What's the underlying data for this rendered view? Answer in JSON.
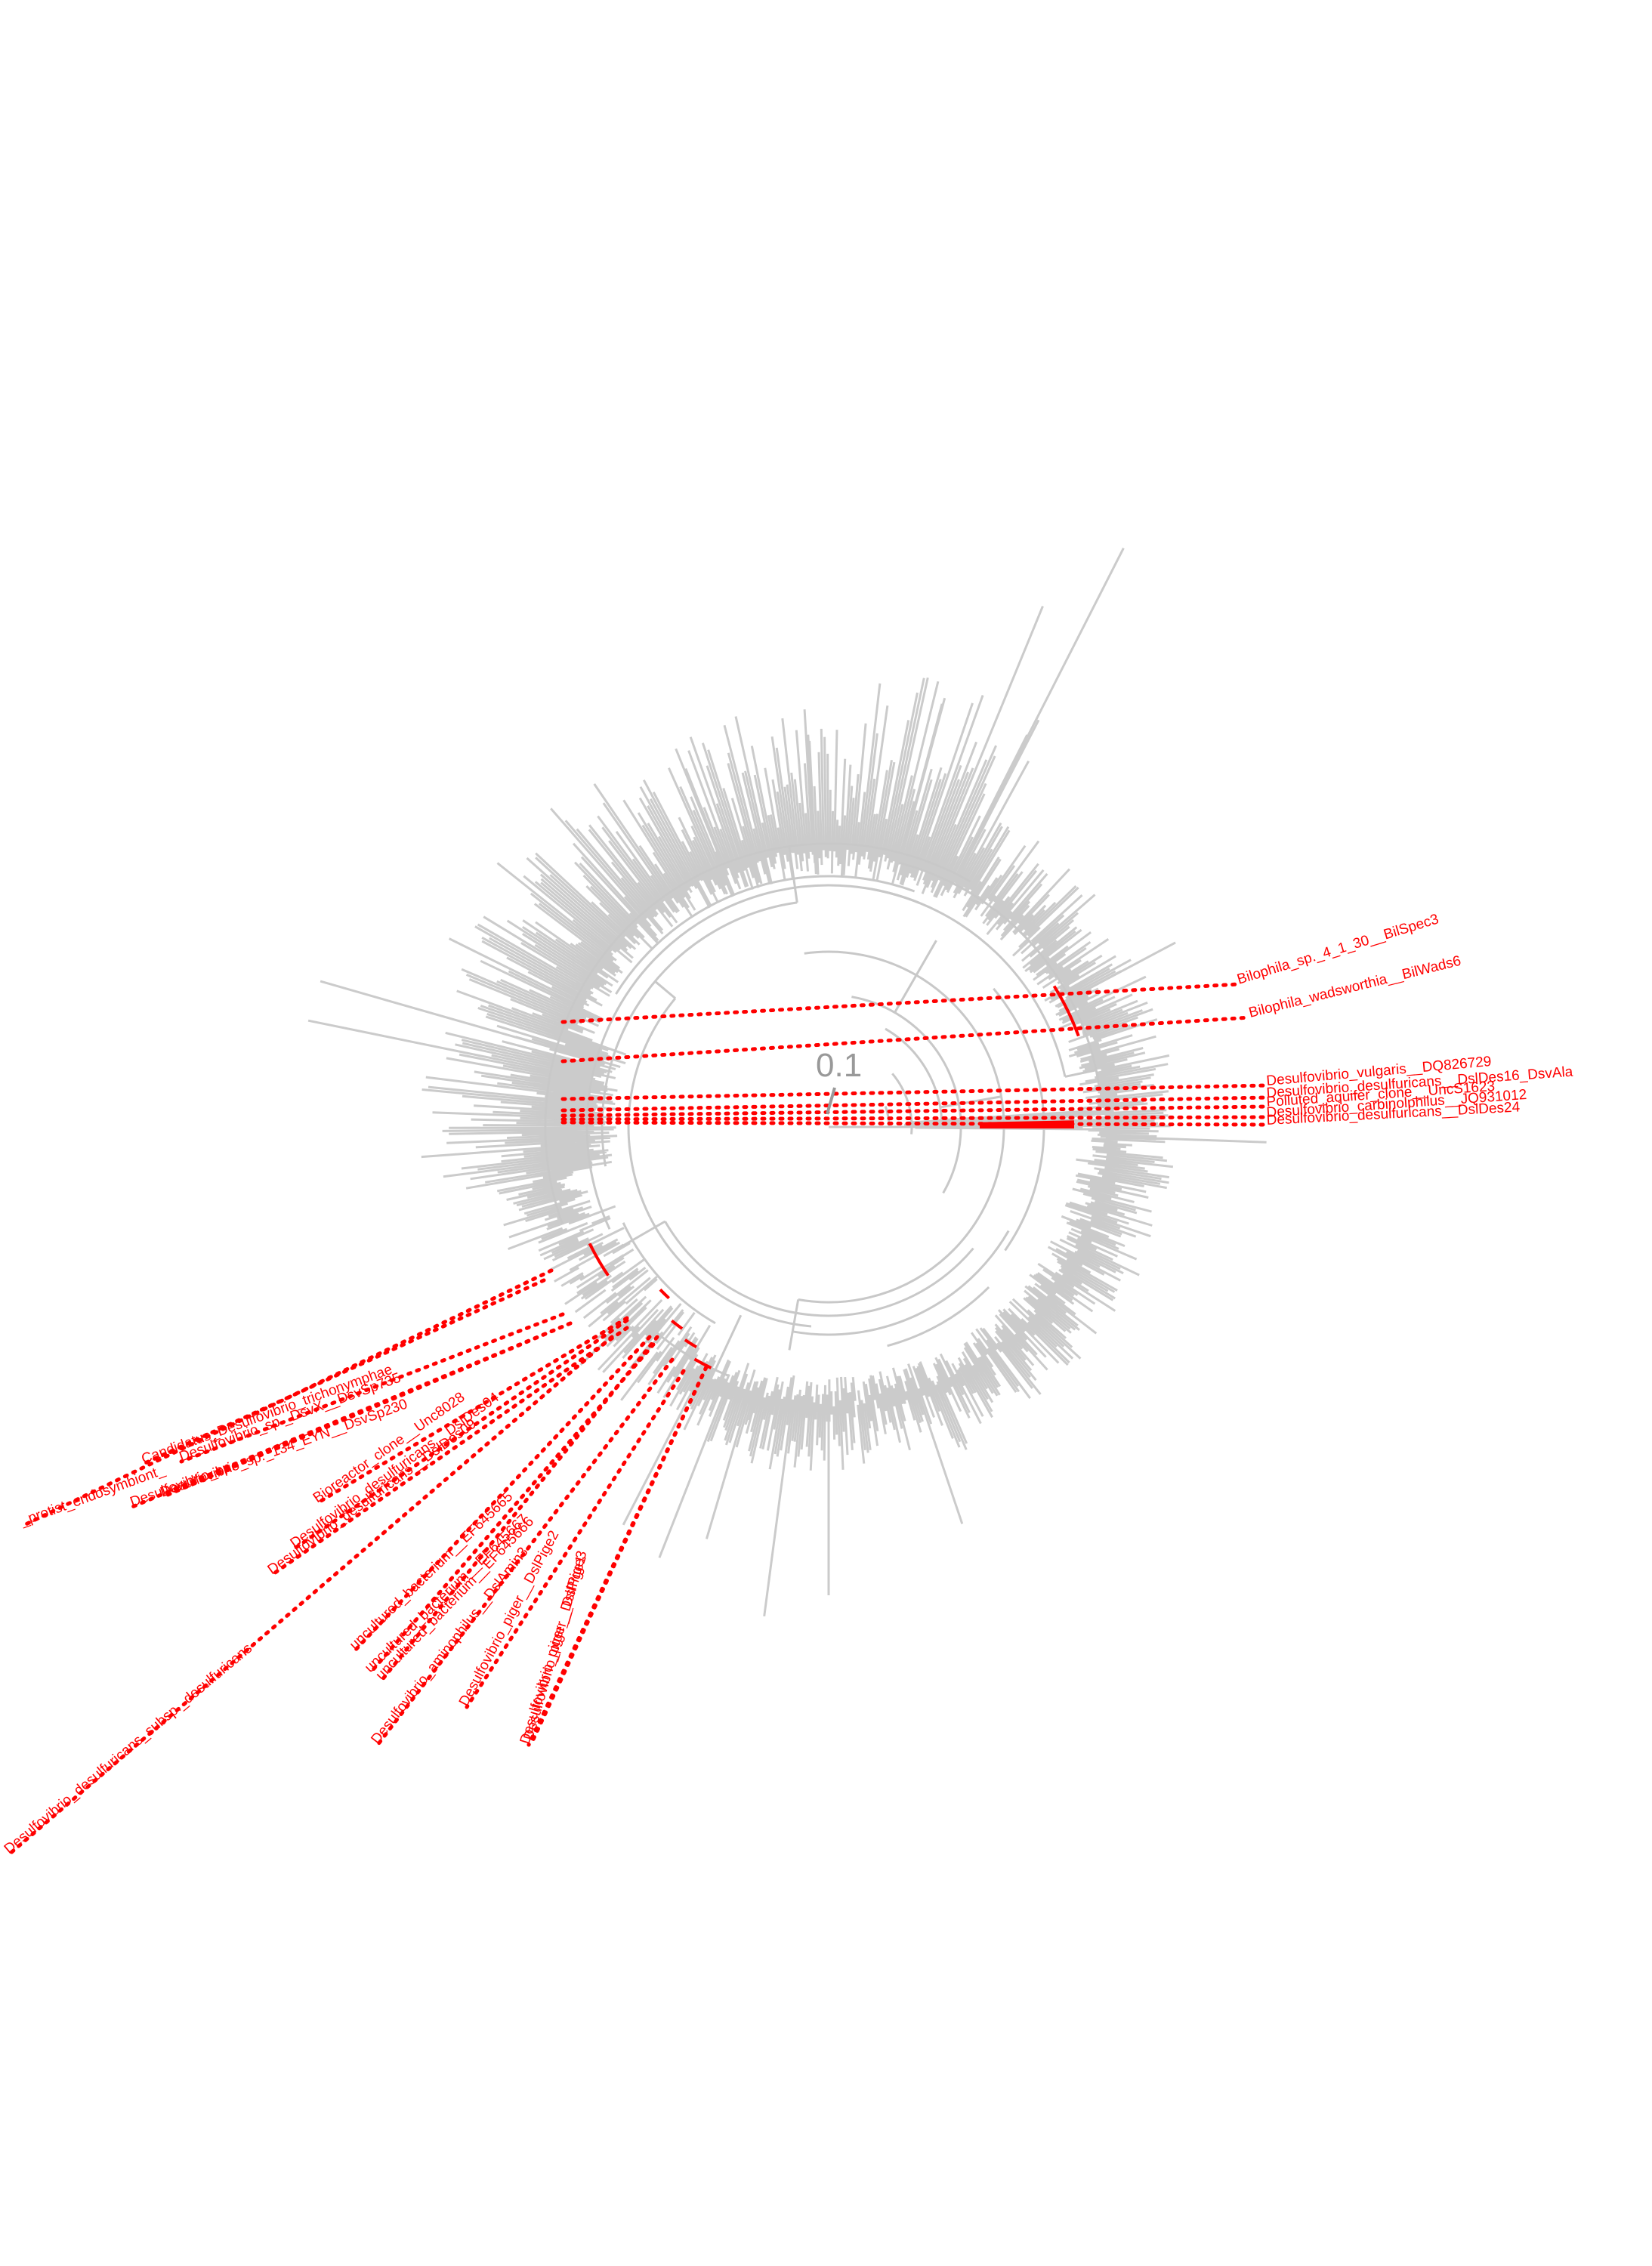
{
  "figure": {
    "scale_bar": {
      "label": "0.1"
    },
    "colors": {
      "branch": "#c8c8c8",
      "highlight": "#ff0000",
      "scale": "#999999",
      "background": "#ffffff"
    },
    "highlighted_taxa": [
      "Bilophila_sp._4_1_30__BilSpec3",
      "Bilophila_wadsworthia__BilWads6",
      "Desulfovibrio_vulgaris__DQ826729",
      "Desulfovibrio_desulfuricans__DslDes16_DsvAla",
      "Polluted_aquifer_clone__UncS1623",
      "Desulfovibrio_carbinolphilus__JQ931012",
      "Desulfovibrio_desulfuricans__DslDes24",
      "_protist_endosymbiont_",
      "Candidatus_Desulfovibrio_trichonymphae",
      "Desulfovibrio_sp._DsvX__DsvSp735",
      "Desulfovibrio_sp._134_EYN__DsvSp230",
      "Desulfovibrio_sp.",
      "Bioreactor_clone__Unc8028",
      "Desulfovibrio_desulfuricans__DslDes04",
      "Desulfovibrio_desulfuricans__DslDes09",
      "uncultured_bacterium__EF645665",
      "uncultured_bacterium__EF645667",
      "uncultured_bacterium__EF645666",
      "Desulfovibrio_aminophilus__DslAmin3",
      "Desulfovibrio_desulfuricans_subsp._desulfuricans",
      "Desulfovibrio_piger__DslPige2",
      "Desulfovibrio_piger__DslPige3",
      "Desulfovibrio_piger__DslPige1"
    ]
  }
}
